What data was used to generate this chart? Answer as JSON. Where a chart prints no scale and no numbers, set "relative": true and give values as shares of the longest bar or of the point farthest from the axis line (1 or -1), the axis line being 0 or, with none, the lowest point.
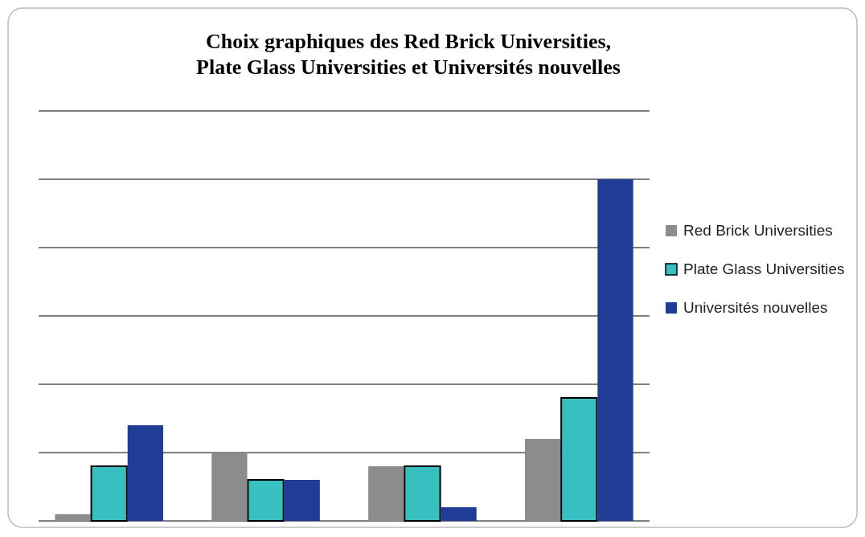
{
  "chart_data": {
    "type": "bar",
    "title": "Choix graphiques des Red Brick Universities, Plate Glass Universities et Universités nouvelles",
    "categories": [
      null,
      null,
      null,
      null
    ],
    "relative": true,
    "grid": "y",
    "legend": "right",
    "series": [
      {
        "name": "Red Brick Universities",
        "color": "#8c8c8f",
        "values": [
          0.02,
          0.2,
          0.16,
          0.24
        ]
      },
      {
        "name": "Plate Glass Universities",
        "color": "#38bfc0",
        "values": [
          0.16,
          0.12,
          0.16,
          0.36
        ]
      },
      {
        "name": "Universités nouvelles",
        "color": "#1f3c96",
        "values": [
          0.28,
          0.12,
          0.04,
          1
        ]
      }
    ]
  }
}
